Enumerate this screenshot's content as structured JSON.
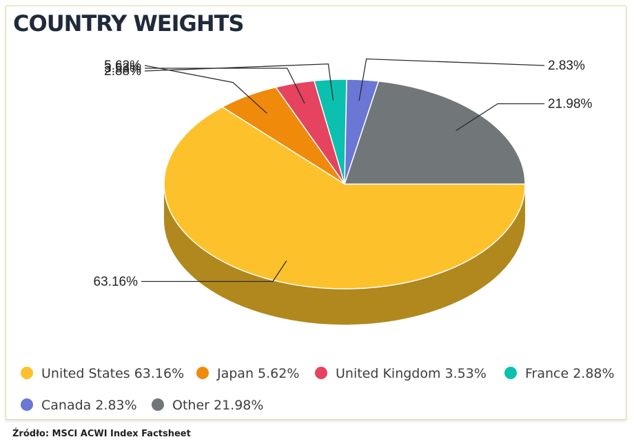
{
  "chart_data": {
    "type": "pie",
    "title": "COUNTRY WEIGHTS",
    "categories": [
      "United States",
      "Japan",
      "United Kingdom",
      "France",
      "Canada",
      "Other"
    ],
    "values": [
      63.16,
      5.62,
      3.53,
      2.88,
      2.83,
      21.98
    ],
    "value_labels": [
      "63.16%",
      "5.62%",
      "3.53%",
      "2.88%",
      "2.83%",
      "21.98%"
    ],
    "legend_labels": [
      "United States 63.16%",
      "Japan 5.62%",
      "United Kingdom 3.53%",
      "France 2.88%",
      "Canada 2.83%",
      "Other 21.98%"
    ],
    "colors": [
      "#fdc22b",
      "#f08a0b",
      "#e5435f",
      "#0cc0af",
      "#6b77d4",
      "#717679"
    ],
    "legend_position": "bottom",
    "style": "3d"
  },
  "source": "Źródło: MSCI ACWI Index Factsheet"
}
